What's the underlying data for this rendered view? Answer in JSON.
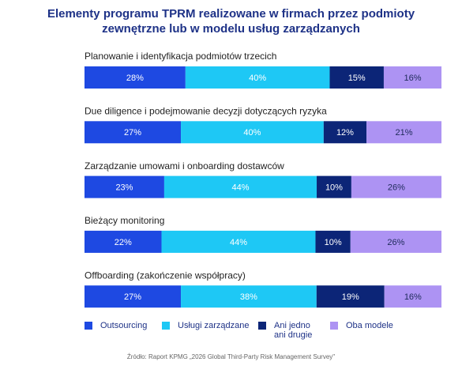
{
  "chart_data": {
    "type": "stacked-bar-horizontal",
    "title": "Elementy programu TPRM realizowane w firmach przez podmioty zewnętrzne lub w modelu usług zarządzanych",
    "categories": [
      "Planowanie i identyfikacja podmiotów trzecich",
      "Due diligence i podejmowanie decyzji dotyczących ryzyka",
      "Zarządzanie umowami i onboarding dostawców",
      "Bieżący monitoring",
      "Offboarding (zakończenie współpracy)"
    ],
    "series": [
      {
        "name": "Outsourcing",
        "color": "#1e49e2",
        "label_color": "#ffffff",
        "values": [
          28,
          27,
          23,
          22,
          27
        ],
        "value_labels": [
          "28%",
          "27%",
          "23%",
          "22%",
          "27%"
        ]
      },
      {
        "name": "Usługi zarządzane",
        "color": "#1ec8f5",
        "label_color": "#ffffff",
        "values": [
          40,
          40,
          44,
          44,
          38
        ],
        "value_labels": [
          "40%",
          "40%",
          "44%",
          "44%",
          "38%"
        ]
      },
      {
        "name": "Ani jedno ani drugie",
        "color": "#0c2577",
        "label_color": "#ffffff",
        "values": [
          15,
          12,
          10,
          10,
          19
        ],
        "value_labels": [
          "15%",
          "12%",
          "10%",
          "10%",
          "19%"
        ]
      },
      {
        "name": "Oba modele",
        "color": "#ad93f3",
        "label_color": "#1e2a5a",
        "values": [
          16,
          21,
          26,
          26,
          16
        ],
        "value_labels": [
          "16%",
          "21%",
          "26%",
          "26%",
          "16%"
        ]
      }
    ],
    "source": "Źródło: Raport KPMG „2026 Global Third-Party Risk Management Survey\""
  }
}
